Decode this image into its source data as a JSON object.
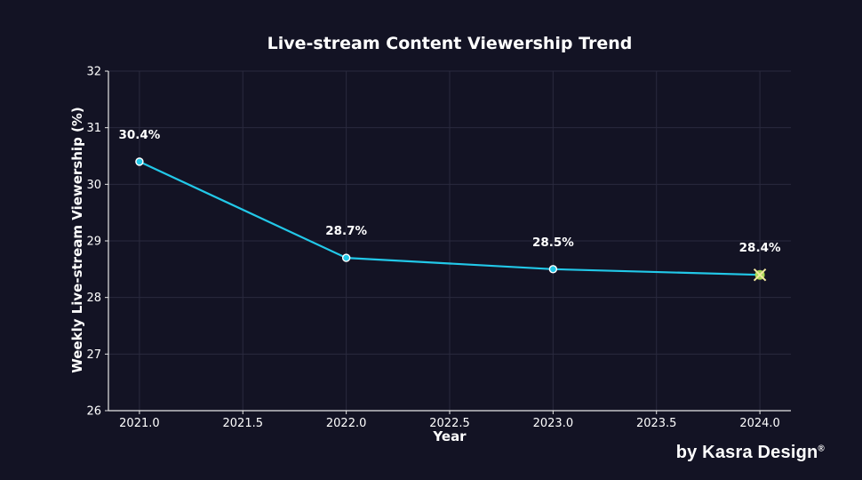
{
  "credit": {
    "text": "by Kasra Design",
    "mark": "®"
  },
  "chart_data": {
    "type": "line",
    "title": "Live-stream Content Viewership Trend",
    "xlabel": "Year",
    "ylabel": "Weekly Live-stream Viewership (%)",
    "xlim": [
      2020.85,
      2024.15
    ],
    "ylim": [
      26,
      32
    ],
    "xticks": [
      2021.0,
      2021.5,
      2022.0,
      2022.5,
      2023.0,
      2023.5,
      2024.0
    ],
    "xtick_labels": [
      "2021.0",
      "2021.5",
      "2022.0",
      "2022.5",
      "2023.0",
      "2023.5",
      "2024.0"
    ],
    "yticks": [
      26,
      27,
      28,
      29,
      30,
      31,
      32
    ],
    "ytick_labels": [
      "26",
      "27",
      "28",
      "29",
      "30",
      "31",
      "32"
    ],
    "grid": true,
    "series": [
      {
        "color": "#22c8e8",
        "x": [
          2021,
          2022,
          2023,
          2024
        ],
        "values": [
          30.4,
          28.7,
          28.5,
          28.4
        ],
        "labels": [
          "30.4%",
          "28.7%",
          "28.5%",
          "28.4%"
        ],
        "highlight_last_color": "#a8d84a"
      }
    ]
  }
}
